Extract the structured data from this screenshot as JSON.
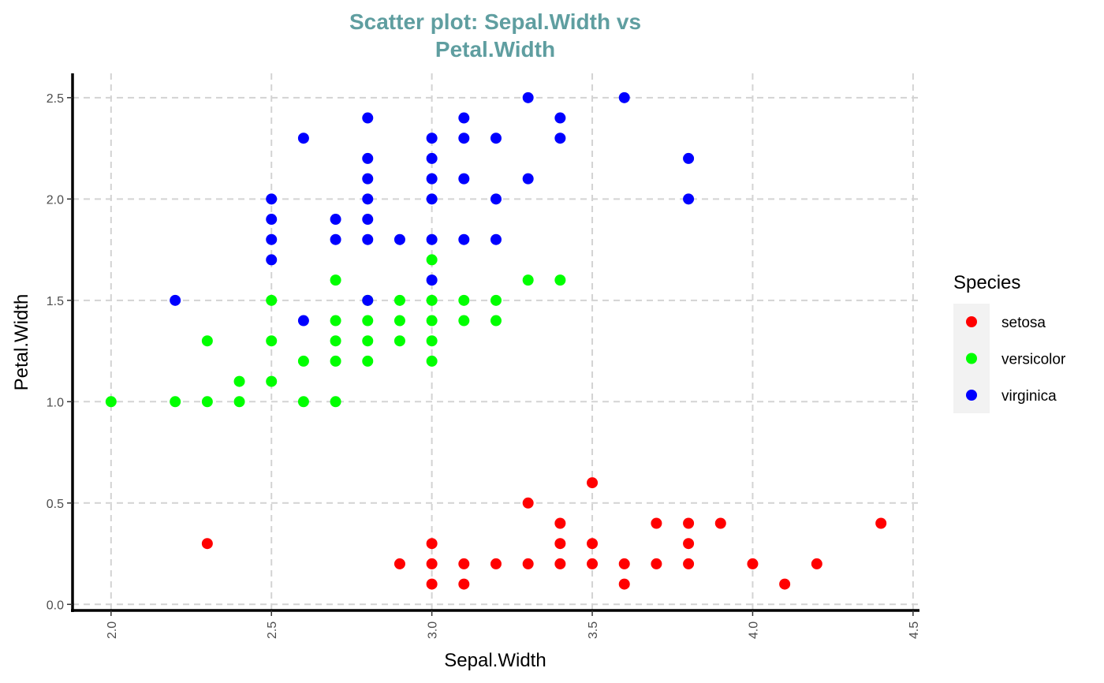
{
  "chart_data": {
    "type": "scatter",
    "title": [
      "Scatter plot: Sepal.Width vs",
      "Petal.Width"
    ],
    "xlabel": "Sepal.Width",
    "ylabel": "Petal.Width",
    "xlim": [
      1.88,
      4.52
    ],
    "ylim": [
      -0.03,
      2.62
    ],
    "x_ticks": [
      2.0,
      2.5,
      3.0,
      3.5,
      4.0,
      4.5
    ],
    "x_tick_labels": [
      "2.0",
      "2.5",
      "3.0",
      "3.5",
      "4.0",
      "4.5"
    ],
    "y_ticks": [
      0.0,
      0.5,
      1.0,
      1.5,
      2.0,
      2.5
    ],
    "y_tick_labels": [
      "0.0",
      "0.5",
      "1.0",
      "1.5",
      "2.0",
      "2.5"
    ],
    "grid": true,
    "legend": {
      "title": "Species",
      "position": "right"
    },
    "series": [
      {
        "name": "setosa",
        "color": "#FF0000",
        "points": [
          [
            2.3,
            0.3
          ],
          [
            2.9,
            0.2
          ],
          [
            3.0,
            0.1
          ],
          [
            3.0,
            0.2
          ],
          [
            3.0,
            0.3
          ],
          [
            3.1,
            0.1
          ],
          [
            3.1,
            0.2
          ],
          [
            3.2,
            0.2
          ],
          [
            3.3,
            0.2
          ],
          [
            3.3,
            0.5
          ],
          [
            3.4,
            0.2
          ],
          [
            3.4,
            0.3
          ],
          [
            3.4,
            0.4
          ],
          [
            3.5,
            0.2
          ],
          [
            3.5,
            0.3
          ],
          [
            3.5,
            0.6
          ],
          [
            3.6,
            0.1
          ],
          [
            3.6,
            0.2
          ],
          [
            3.7,
            0.2
          ],
          [
            3.7,
            0.4
          ],
          [
            3.8,
            0.2
          ],
          [
            3.8,
            0.3
          ],
          [
            3.8,
            0.4
          ],
          [
            3.9,
            0.4
          ],
          [
            4.0,
            0.2
          ],
          [
            4.1,
            0.1
          ],
          [
            4.2,
            0.2
          ],
          [
            4.4,
            0.4
          ]
        ]
      },
      {
        "name": "versicolor",
        "color": "#00FF00",
        "points": [
          [
            2.0,
            1.0
          ],
          [
            2.2,
            1.0
          ],
          [
            2.3,
            1.0
          ],
          [
            2.3,
            1.3
          ],
          [
            2.4,
            1.0
          ],
          [
            2.4,
            1.1
          ],
          [
            2.5,
            1.1
          ],
          [
            2.5,
            1.3
          ],
          [
            2.5,
            1.5
          ],
          [
            2.6,
            1.0
          ],
          [
            2.6,
            1.2
          ],
          [
            2.7,
            1.0
          ],
          [
            2.7,
            1.2
          ],
          [
            2.7,
            1.3
          ],
          [
            2.7,
            1.4
          ],
          [
            2.7,
            1.6
          ],
          [
            2.8,
            1.2
          ],
          [
            2.8,
            1.3
          ],
          [
            2.8,
            1.4
          ],
          [
            2.8,
            1.5
          ],
          [
            2.9,
            1.3
          ],
          [
            2.9,
            1.4
          ],
          [
            2.9,
            1.5
          ],
          [
            3.0,
            1.2
          ],
          [
            3.0,
            1.3
          ],
          [
            3.0,
            1.4
          ],
          [
            3.0,
            1.5
          ],
          [
            3.0,
            1.7
          ],
          [
            3.1,
            1.4
          ],
          [
            3.1,
            1.5
          ],
          [
            3.2,
            1.4
          ],
          [
            3.2,
            1.5
          ],
          [
            3.3,
            1.6
          ],
          [
            3.4,
            1.6
          ]
        ]
      },
      {
        "name": "virginica",
        "color": "#0000FF",
        "points": [
          [
            2.2,
            1.5
          ],
          [
            2.5,
            1.7
          ],
          [
            2.5,
            1.8
          ],
          [
            2.5,
            1.9
          ],
          [
            2.5,
            2.0
          ],
          [
            2.6,
            1.4
          ],
          [
            2.6,
            2.3
          ],
          [
            2.7,
            1.8
          ],
          [
            2.7,
            1.9
          ],
          [
            2.8,
            1.5
          ],
          [
            2.8,
            1.8
          ],
          [
            2.8,
            1.9
          ],
          [
            2.8,
            2.0
          ],
          [
            2.8,
            2.1
          ],
          [
            2.8,
            2.2
          ],
          [
            2.8,
            2.4
          ],
          [
            2.9,
            1.8
          ],
          [
            3.0,
            1.6
          ],
          [
            3.0,
            1.8
          ],
          [
            3.0,
            2.0
          ],
          [
            3.0,
            2.1
          ],
          [
            3.0,
            2.2
          ],
          [
            3.0,
            2.3
          ],
          [
            3.1,
            1.8
          ],
          [
            3.1,
            2.1
          ],
          [
            3.1,
            2.3
          ],
          [
            3.1,
            2.4
          ],
          [
            3.2,
            1.8
          ],
          [
            3.2,
            2.0
          ],
          [
            3.2,
            2.3
          ],
          [
            3.3,
            2.1
          ],
          [
            3.3,
            2.5
          ],
          [
            3.4,
            2.3
          ],
          [
            3.4,
            2.4
          ],
          [
            3.6,
            2.5
          ],
          [
            3.8,
            2.0
          ],
          [
            3.8,
            2.2
          ]
        ]
      }
    ]
  }
}
